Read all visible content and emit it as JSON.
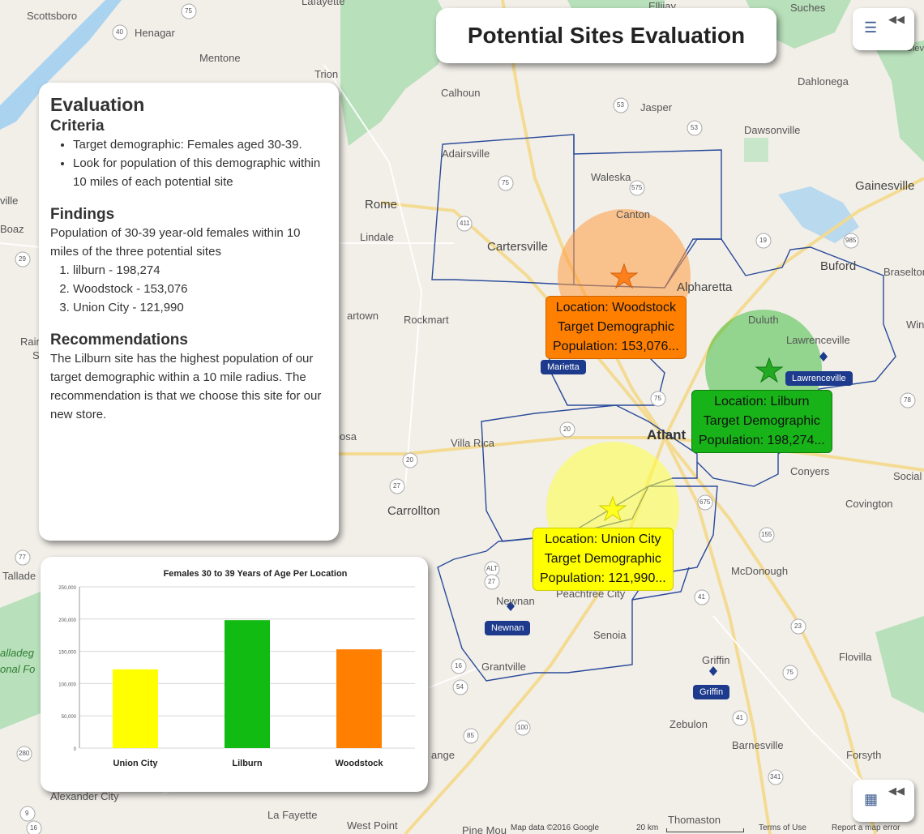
{
  "title": "Potential Sites Evaluation",
  "panel": {
    "heading": "Evaluation",
    "criteria_heading": "Criteria",
    "criteria": [
      "Target demographic: Females aged 30-39.",
      "Look for population of this demographic within 10 miles of each potential site"
    ],
    "findings_heading": "Findings",
    "findings_text": "Population of 30-39 year-old females within 10 miles of the three potential sites",
    "findings_list": [
      "lilburn - 198,274",
      "Woodstock - 153,076",
      "Union City - 121,990"
    ],
    "recommendations_heading": "Recommendations",
    "recommendations_text": "The Lilburn site has the highest population of our target demographic within a 10 mile radius. The recommendation is that we choose this site for our new store."
  },
  "chart_data": {
    "type": "bar",
    "title": "Females 30 to 39 Years of Age Per Location",
    "categories": [
      "Union City",
      "Lilburn",
      "Woodstock"
    ],
    "values": [
      121990,
      198274,
      153076
    ],
    "colors": [
      "#ffff00",
      "#11bb11",
      "#ff7f00"
    ],
    "ylim": [
      0,
      250000
    ],
    "yticks": [
      "0",
      "50,000",
      "100,000",
      "150,000",
      "200,000",
      "250,000"
    ],
    "ytick_values": [
      0,
      50000,
      100000,
      150000,
      200000,
      250000
    ],
    "grid": true
  },
  "callouts": {
    "woodstock": [
      "Location: Woodstock",
      "Target Demographic",
      "Population: 153,076..."
    ],
    "lilburn": [
      "Location: Lilburn",
      "Target Demographic",
      "Population: 198,274..."
    ],
    "union_city": [
      "Location: Union City",
      "Target Demographic",
      "Population: 121,990..."
    ]
  },
  "badges": {
    "marietta": "Marietta",
    "lawrenceville": "Lawrenceville",
    "newnan": "Newnan",
    "griffin": "Griffin"
  },
  "places": [
    "Scottsboro",
    "Henagar",
    "Mentone",
    "Trion",
    "Calhoun",
    "Jasper",
    "Dawsonville",
    "Dahlonega",
    "Suches",
    "Ellijay",
    "Lafayette",
    "Adairsville",
    "Waleska",
    "Canton",
    "Gainesville",
    "Rome",
    "Lindale",
    "Cartersville",
    "Alpharetta",
    "Buford",
    "Braselton",
    "Duluth",
    "Lawrenceville",
    "Rockmart",
    "artown",
    "Boaz",
    "ville",
    "Rair",
    "Villa Rica",
    "Atlant",
    "Conyers",
    "Social",
    "Covington",
    "Carrollton",
    "Tallade",
    "Newnan",
    "Peachtree City",
    "McDonough",
    "Senoia",
    "Griffin",
    "Flovilla",
    "Grantville",
    "Zebulon",
    "Barnesville",
    "Forsyth",
    "ange",
    "Alexander City",
    "La Fayette",
    "West Point",
    "Thomaston",
    "Pine Mou",
    "Win",
    "osa",
    "S",
    "alladeg",
    "onal Fo",
    "Cleveland"
  ],
  "route_shields": [
    "75",
    "40",
    "53",
    "53",
    "575",
    "411",
    "75",
    "19",
    "985",
    "75",
    "20",
    "78",
    "20",
    "27",
    "155",
    "675",
    "ALT",
    "27",
    "41",
    "23",
    "85",
    "100",
    "16",
    "54",
    "41",
    "341",
    "75",
    "280",
    "77",
    "29",
    "9",
    "16"
  ],
  "footer": {
    "map_data": "Map data ©2016 Google",
    "scale": "20 km",
    "terms": "Terms of Use",
    "report": "Report a map error"
  },
  "icons": {
    "legend": "legend-list-icon",
    "grid": "grid-icon",
    "collapse": "double-chevron-left-icon"
  }
}
